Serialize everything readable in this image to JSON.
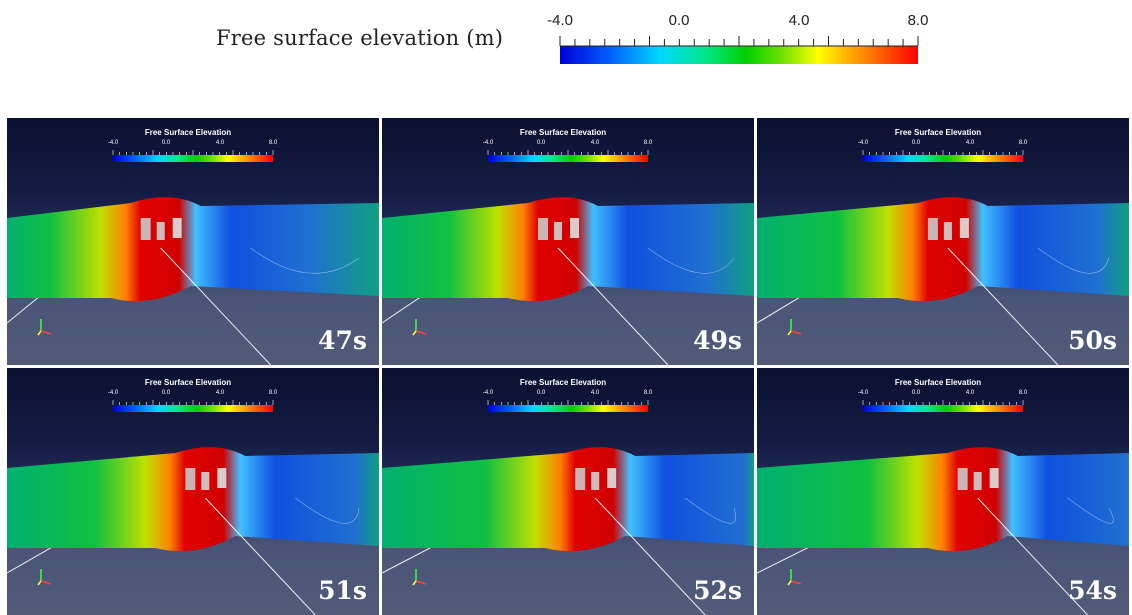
{
  "legend": {
    "title": "Free surface elevation (m)",
    "ticks": [
      "-4.0",
      "0.0",
      "4.0",
      "8.0"
    ],
    "colors": [
      "#0000d8",
      "#00d8ff",
      "#00d000",
      "#ffff00",
      "#ff0000"
    ]
  },
  "panel_legend": {
    "title": "Free Surface Elevation",
    "ticks": [
      "-4.0",
      "0.0",
      "4.0",
      "8.0"
    ]
  },
  "panels": [
    {
      "time": "47s"
    },
    {
      "time": "49s"
    },
    {
      "time": "50s"
    },
    {
      "time": "51s"
    },
    {
      "time": "52s"
    },
    {
      "time": "54s"
    }
  ]
}
